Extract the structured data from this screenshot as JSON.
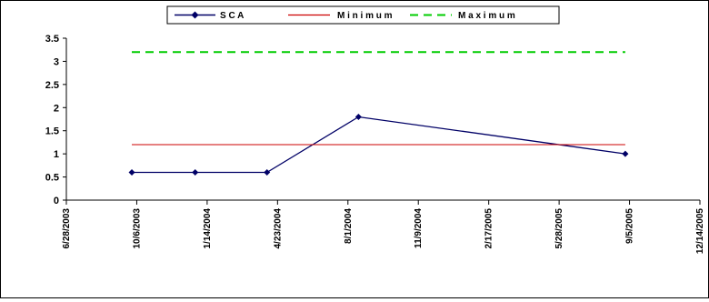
{
  "chart_data": {
    "type": "line",
    "title": "",
    "xlabel": "",
    "ylabel": "",
    "x_tick_labels": [
      "6/28/2003",
      "10/6/2003",
      "1/14/2004",
      "4/23/2004",
      "8/1/2004",
      "11/9/2004",
      "2/17/2005",
      "5/28/2005",
      "9/5/2005",
      "12/14/2005"
    ],
    "x_ticks": [
      "2003-06-28",
      "2003-10-06",
      "2004-01-14",
      "2004-04-23",
      "2004-08-01",
      "2004-11-09",
      "2005-02-17",
      "2005-05-28",
      "2005-09-05",
      "2005-12-14"
    ],
    "xlim": [
      "2003-06-28",
      "2005-12-14"
    ],
    "y_tick_labels": [
      "0",
      "0.5",
      "1",
      "1.5",
      "2",
      "2.5",
      "3",
      "3.5"
    ],
    "y_ticks": [
      0,
      0.5,
      1,
      1.5,
      2,
      2.5,
      3,
      3.5
    ],
    "ylim": [
      0,
      3.5
    ],
    "grid": false,
    "legend_position": "top",
    "series": [
      {
        "name": "SCA",
        "color": "#000066",
        "style": "solid",
        "marker": "diamond",
        "points": [
          {
            "x": "2003-09-29",
            "y": 0.6
          },
          {
            "x": "2003-12-28",
            "y": 0.6
          },
          {
            "x": "2004-04-08",
            "y": 0.6
          },
          {
            "x": "2004-08-16",
            "y": 1.8
          },
          {
            "x": "2005-08-30",
            "y": 1.0
          }
        ]
      },
      {
        "name": "Minimum",
        "color": "#cc0000",
        "style": "solid",
        "marker": "none",
        "points": [
          {
            "x": "2003-09-29",
            "y": 1.2
          },
          {
            "x": "2005-08-30",
            "y": 1.2
          }
        ]
      },
      {
        "name": "Maximum",
        "color": "#00cc00",
        "style": "dashed",
        "marker": "none",
        "points": [
          {
            "x": "2003-09-29",
            "y": 3.2
          },
          {
            "x": "2005-08-30",
            "y": 3.2
          }
        ]
      }
    ],
    "legend": {
      "labels": [
        "S C A",
        "M i n i m u m",
        "M a x i m u m"
      ]
    }
  }
}
